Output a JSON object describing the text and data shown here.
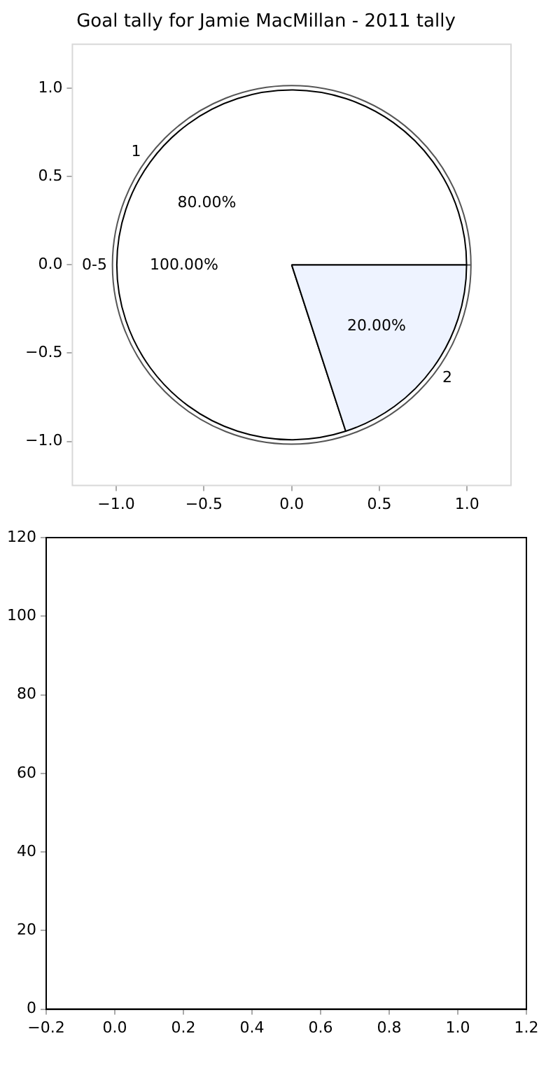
{
  "chart_data": [
    {
      "type": "scatter",
      "title": "Goal tally for Jamie MacMillan - 2011 tally",
      "xlim": [
        -1.25,
        1.25
      ],
      "ylim": [
        -1.25,
        1.25
      ],
      "xticks": [
        {
          "value": -1,
          "label": "−1.0"
        },
        {
          "value": -0.5,
          "label": "−0.5"
        },
        {
          "value": 0,
          "label": "0.0"
        },
        {
          "value": 0.5,
          "label": "0.5"
        },
        {
          "value": 1,
          "label": "1.0"
        }
      ],
      "yticks": [
        {
          "value": -1,
          "label": "−1.0"
        },
        {
          "value": -0.5,
          "label": "−0.5"
        },
        {
          "value": 0,
          "label": "0.0"
        },
        {
          "value": 0.5,
          "label": "0.5"
        },
        {
          "value": 1,
          "label": "1.0"
        }
      ]
    },
    {
      "type": "pie",
      "categories": [
        "1",
        "2"
      ],
      "values": [
        80,
        20
      ],
      "colors": [
        "#ffffff",
        "#eef3ff"
      ],
      "value_labels": [
        "80.00%",
        "20.00%"
      ]
    },
    {
      "type": "pie",
      "categories": [
        "0-5"
      ],
      "values": [
        100
      ],
      "colors": [
        "#ffffff"
      ],
      "value_labels": [
        "100.00%"
      ]
    },
    {
      "type": "scatter",
      "xlim": [
        -0.2,
        1.2
      ],
      "ylim": [
        0,
        120
      ],
      "xticks": [
        {
          "value": -0.2,
          "label": "−0.2"
        },
        {
          "value": 0,
          "label": "0.0"
        },
        {
          "value": 0.2,
          "label": "0.2"
        },
        {
          "value": 0.4,
          "label": "0.4"
        },
        {
          "value": 0.6,
          "label": "0.6"
        },
        {
          "value": 0.8,
          "label": "0.8"
        },
        {
          "value": 1,
          "label": "1.0"
        },
        {
          "value": 1.2,
          "label": "1.2"
        }
      ],
      "yticks": [
        0,
        20,
        40,
        60,
        80,
        100,
        120
      ]
    }
  ]
}
